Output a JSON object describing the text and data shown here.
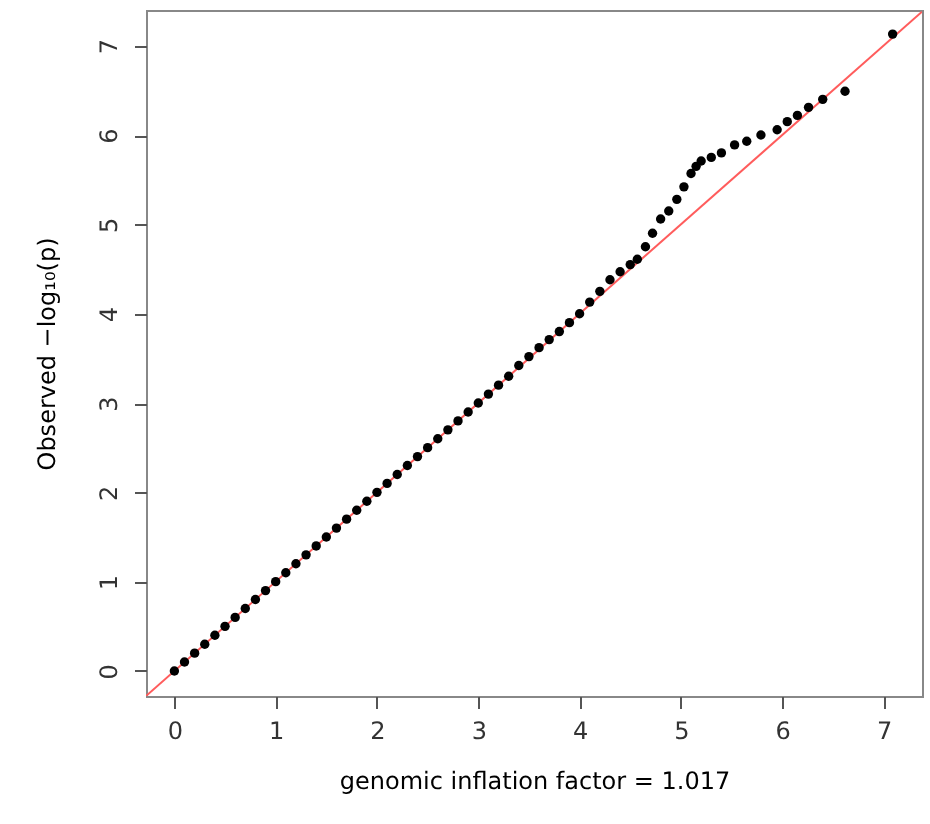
{
  "chart_data": {
    "type": "scatter",
    "xlabel": "genomic inflation factor = 1.017",
    "ylabel": "Observed  −log₁₀(p)",
    "xlim": [
      -0.28,
      7.38
    ],
    "ylim": [
      -0.28,
      7.4
    ],
    "xticks": [
      0,
      1,
      2,
      3,
      4,
      5,
      6,
      7
    ],
    "yticks": [
      0,
      1,
      2,
      3,
      4,
      5,
      6,
      7
    ],
    "grid": false,
    "series": [
      {
        "type": "line",
        "color": "#ff5c5c",
        "x": [
          -0.28,
          7.38
        ],
        "values": [
          -0.28,
          7.38
        ]
      },
      {
        "marker": "circle",
        "color": "#000000",
        "x": [
          0,
          0.1,
          0.2,
          0.3,
          0.4,
          0.5,
          0.6,
          0.7,
          0.8,
          0.9,
          1,
          1.1,
          1.2,
          1.3,
          1.4,
          1.5,
          1.6,
          1.7,
          1.8,
          1.9,
          2,
          2.1,
          2.2,
          2.3,
          2.4,
          2.5,
          2.6,
          2.7,
          2.8,
          2.9,
          3,
          3.1,
          3.2,
          3.3,
          3.4,
          3.5,
          3.6,
          3.7,
          3.8,
          3.9,
          4,
          4.1,
          4.2,
          4.3,
          4.4,
          4.5,
          4.57,
          4.65,
          4.72,
          4.8,
          4.88,
          4.96,
          5.03,
          5.1,
          5.15,
          5.2,
          5.3,
          5.4,
          5.53,
          5.65,
          5.79,
          5.95,
          6.05,
          6.15,
          6.26,
          6.4,
          6.62,
          7.09
        ],
        "values": [
          0,
          0.1,
          0.2,
          0.3,
          0.4,
          0.5,
          0.6,
          0.7,
          0.8,
          0.9,
          1,
          1.1,
          1.2,
          1.3,
          1.4,
          1.5,
          1.6,
          1.7,
          1.8,
          1.9,
          2,
          2.1,
          2.2,
          2.3,
          2.4,
          2.5,
          2.6,
          2.7,
          2.8,
          2.9,
          3,
          3.1,
          3.2,
          3.3,
          3.42,
          3.52,
          3.62,
          3.71,
          3.8,
          3.9,
          4,
          4.13,
          4.25,
          4.38,
          4.47,
          4.55,
          4.61,
          4.75,
          4.9,
          5.06,
          5.15,
          5.28,
          5.42,
          5.57,
          5.65,
          5.71,
          5.75,
          5.8,
          5.89,
          5.93,
          6,
          6.06,
          6.15,
          6.22,
          6.31,
          6.4,
          6.49,
          7.13
        ]
      }
    ]
  }
}
